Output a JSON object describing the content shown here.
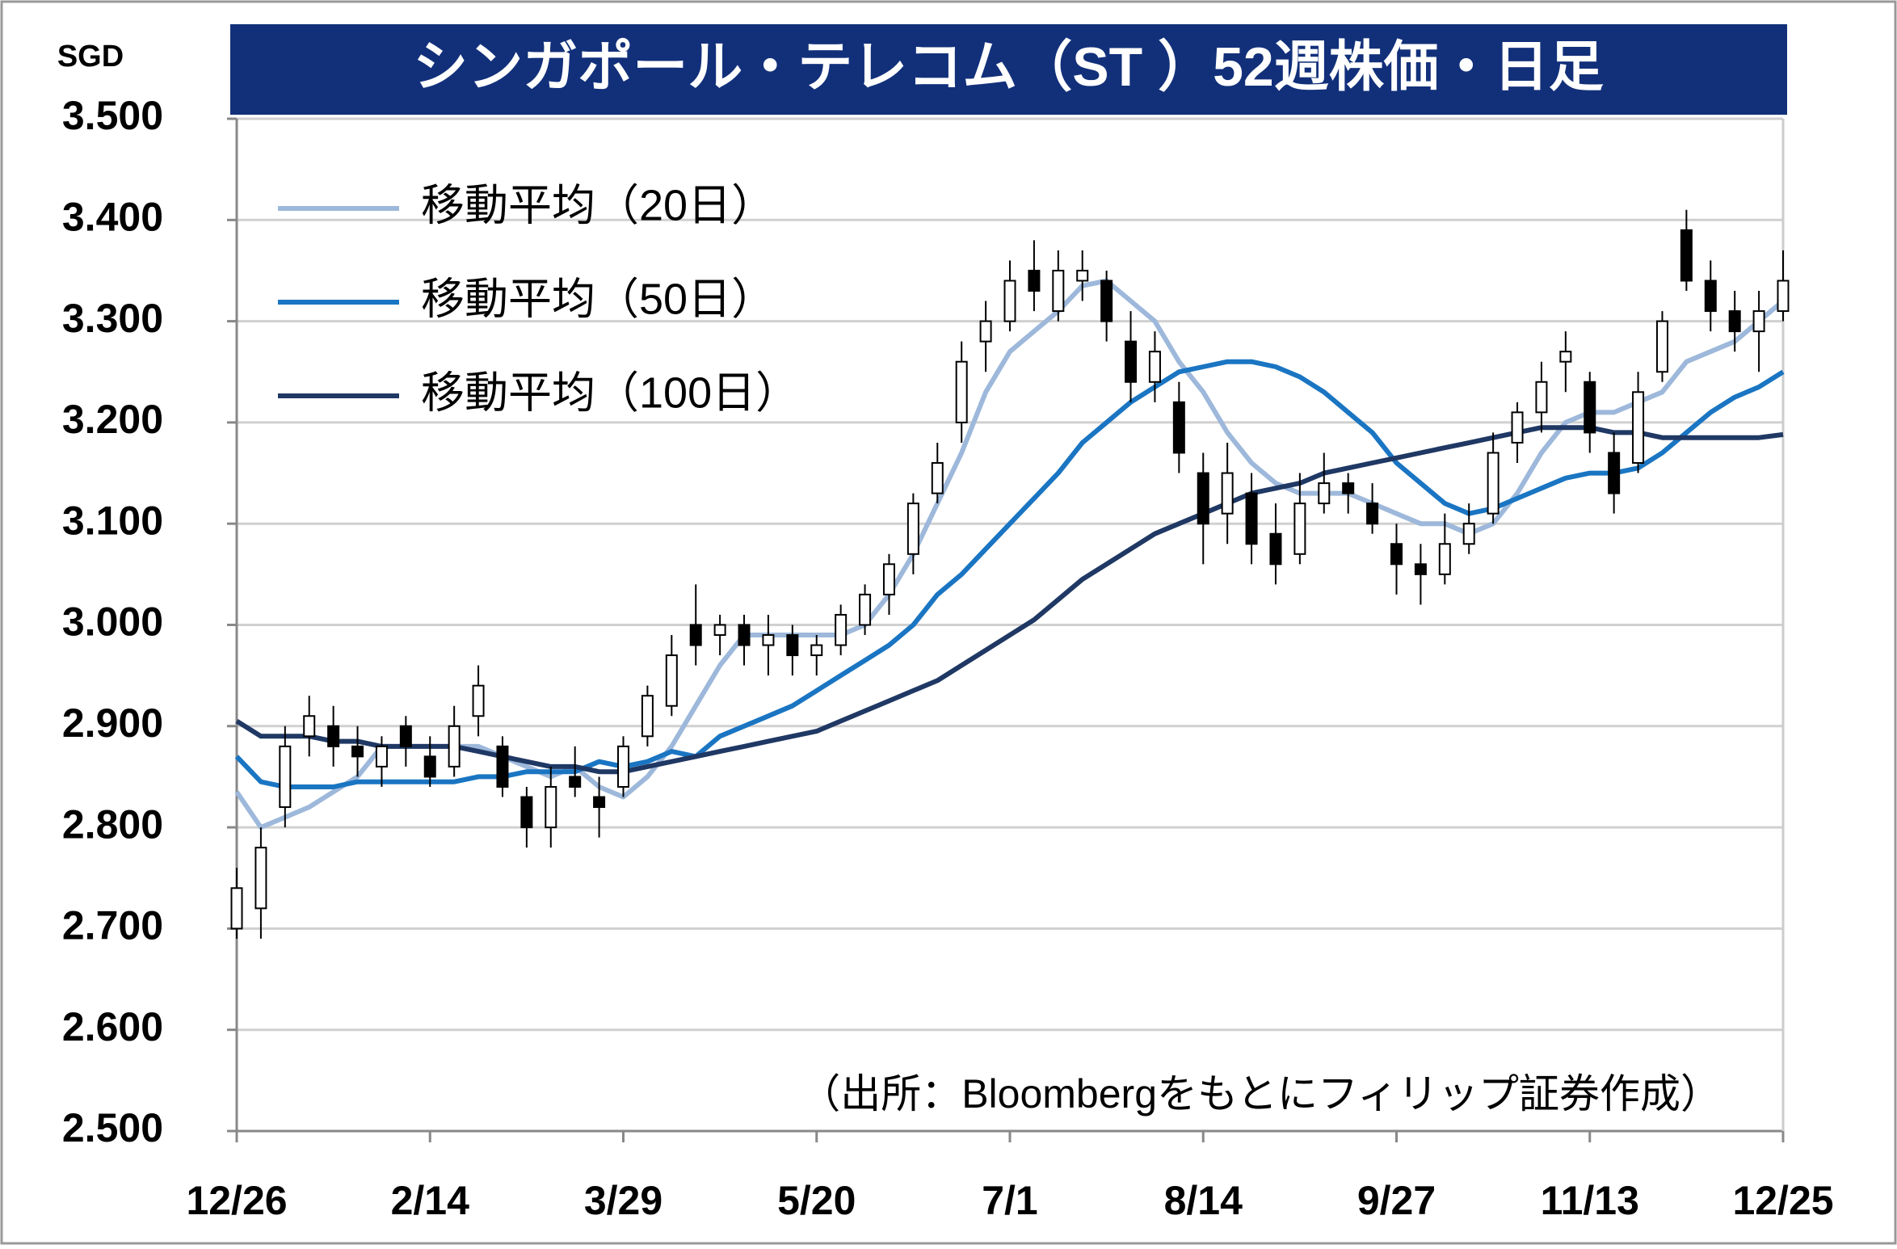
{
  "chart_data": {
    "type": "candlestick",
    "title": "シンガポール・テレコム（ST ）52週株価・日足",
    "y_unit_label": "SGD",
    "source": "（出所：Bloombergをもとにフィリップ証券作成）",
    "categories": [
      "12/26",
      null,
      null,
      null,
      null,
      null,
      null,
      null,
      "2/14",
      null,
      null,
      null,
      null,
      null,
      null,
      null,
      "3/29",
      null,
      null,
      null,
      null,
      null,
      null,
      null,
      "5/20",
      null,
      null,
      null,
      null,
      null,
      null,
      null,
      "7/1",
      null,
      null,
      null,
      null,
      null,
      null,
      null,
      "8/14",
      null,
      null,
      null,
      null,
      null,
      null,
      null,
      "9/27",
      null,
      null,
      null,
      null,
      null,
      null,
      null,
      "11/13",
      null,
      null,
      null,
      null,
      null,
      null,
      null,
      "12/25"
    ],
    "candles": {
      "color": "#000000",
      "open": [
        2.7,
        2.72,
        2.82,
        2.89,
        2.9,
        2.88,
        2.86,
        2.9,
        2.87,
        2.86,
        2.91,
        2.88,
        2.83,
        2.8,
        2.85,
        2.83,
        2.84,
        2.89,
        2.92,
        3.0,
        2.99,
        3.0,
        2.98,
        2.99,
        2.97,
        2.98,
        3.0,
        3.03,
        3.07,
        3.13,
        3.2,
        3.28,
        3.3,
        3.35,
        3.31,
        3.34,
        3.34,
        3.28,
        3.24,
        3.22,
        3.15,
        3.11,
        3.13,
        3.09,
        3.07,
        3.12,
        3.14,
        3.12,
        3.08,
        3.06,
        3.05,
        3.08,
        3.11,
        3.18,
        3.21,
        3.26,
        3.24,
        3.17,
        3.16,
        3.25,
        3.39,
        3.34,
        3.31,
        3.29,
        3.31
      ],
      "high": [
        2.76,
        2.8,
        2.9,
        2.93,
        2.92,
        2.9,
        2.89,
        2.91,
        2.89,
        2.92,
        2.96,
        2.89,
        2.84,
        2.86,
        2.88,
        2.85,
        2.89,
        2.94,
        2.99,
        3.04,
        3.01,
        3.01,
        3.01,
        3.0,
        2.99,
        3.02,
        3.04,
        3.07,
        3.13,
        3.18,
        3.28,
        3.32,
        3.36,
        3.38,
        3.37,
        3.37,
        3.35,
        3.31,
        3.29,
        3.24,
        3.17,
        3.18,
        3.15,
        3.12,
        3.15,
        3.17,
        3.15,
        3.14,
        3.1,
        3.08,
        3.11,
        3.12,
        3.19,
        3.22,
        3.26,
        3.29,
        3.25,
        3.19,
        3.25,
        3.31,
        3.41,
        3.36,
        3.33,
        3.33,
        3.37
      ],
      "low": [
        2.69,
        2.69,
        2.8,
        2.87,
        2.86,
        2.85,
        2.84,
        2.86,
        2.84,
        2.85,
        2.89,
        2.83,
        2.78,
        2.78,
        2.83,
        2.79,
        2.83,
        2.88,
        2.91,
        2.96,
        2.97,
        2.96,
        2.95,
        2.95,
        2.95,
        2.97,
        2.99,
        3.01,
        3.05,
        3.12,
        3.18,
        3.25,
        3.29,
        3.31,
        3.3,
        3.32,
        3.28,
        3.22,
        3.22,
        3.15,
        3.06,
        3.08,
        3.06,
        3.04,
        3.06,
        3.11,
        3.11,
        3.09,
        3.03,
        3.02,
        3.04,
        3.07,
        3.1,
        3.16,
        3.19,
        3.23,
        3.17,
        3.11,
        3.15,
        3.24,
        3.33,
        3.29,
        3.27,
        3.25,
        3.3
      ],
      "close": [
        2.74,
        2.78,
        2.88,
        2.91,
        2.88,
        2.87,
        2.88,
        2.88,
        2.85,
        2.9,
        2.94,
        2.84,
        2.8,
        2.84,
        2.84,
        2.82,
        2.88,
        2.93,
        2.97,
        2.98,
        3.0,
        2.98,
        2.99,
        2.97,
        2.98,
        3.01,
        3.03,
        3.06,
        3.12,
        3.16,
        3.26,
        3.3,
        3.34,
        3.33,
        3.35,
        3.35,
        3.3,
        3.24,
        3.27,
        3.17,
        3.1,
        3.15,
        3.08,
        3.06,
        3.12,
        3.14,
        3.13,
        3.1,
        3.06,
        3.05,
        3.08,
        3.1,
        3.17,
        3.21,
        3.24,
        3.27,
        3.19,
        3.13,
        3.23,
        3.3,
        3.34,
        3.31,
        3.29,
        3.31,
        3.34
      ]
    },
    "series": [
      {
        "name": "移動平均（20日）",
        "color": "#9db8da",
        "values": [
          2.835,
          2.8,
          2.81,
          2.82,
          2.835,
          2.85,
          2.88,
          2.88,
          2.88,
          2.88,
          2.88,
          2.87,
          2.86,
          2.85,
          2.86,
          2.84,
          2.83,
          2.85,
          2.88,
          2.92,
          2.96,
          2.99,
          2.99,
          2.99,
          2.99,
          2.99,
          3.0,
          3.03,
          3.07,
          3.12,
          3.17,
          3.23,
          3.27,
          3.29,
          3.31,
          3.335,
          3.34,
          3.32,
          3.3,
          3.26,
          3.23,
          3.19,
          3.16,
          3.14,
          3.13,
          3.13,
          3.13,
          3.12,
          3.11,
          3.1,
          3.1,
          3.09,
          3.1,
          3.13,
          3.17,
          3.2,
          3.21,
          3.21,
          3.22,
          3.23,
          3.26,
          3.27,
          3.28,
          3.3,
          3.32
        ]
      },
      {
        "name": "移動平均（50日）",
        "color": "#1a75c2",
        "values": [
          2.87,
          2.845,
          2.84,
          2.84,
          2.84,
          2.845,
          2.845,
          2.845,
          2.845,
          2.845,
          2.85,
          2.85,
          2.855,
          2.855,
          2.855,
          2.865,
          2.86,
          2.865,
          2.875,
          2.87,
          2.89,
          2.9,
          2.91,
          2.92,
          2.935,
          2.95,
          2.965,
          2.98,
          3.0,
          3.03,
          3.05,
          3.075,
          3.1,
          3.125,
          3.15,
          3.18,
          3.2,
          3.22,
          3.235,
          3.25,
          3.255,
          3.26,
          3.26,
          3.255,
          3.245,
          3.23,
          3.21,
          3.19,
          3.16,
          3.14,
          3.12,
          3.11,
          3.115,
          3.125,
          3.135,
          3.145,
          3.15,
          3.15,
          3.155,
          3.17,
          3.19,
          3.21,
          3.225,
          3.235,
          3.25
        ]
      },
      {
        "name": "移動平均（100日）",
        "color": "#1f3864",
        "values": [
          2.905,
          2.89,
          2.89,
          2.89,
          2.885,
          2.885,
          2.88,
          2.88,
          2.88,
          2.88,
          2.875,
          2.87,
          2.865,
          2.86,
          2.86,
          2.855,
          2.855,
          2.86,
          2.865,
          2.87,
          2.875,
          2.88,
          2.885,
          2.89,
          2.895,
          2.905,
          2.915,
          2.925,
          2.935,
          2.945,
          2.96,
          2.975,
          2.99,
          3.005,
          3.025,
          3.045,
          3.06,
          3.075,
          3.09,
          3.1,
          3.11,
          3.12,
          3.13,
          3.135,
          3.14,
          3.15,
          3.155,
          3.16,
          3.165,
          3.17,
          3.175,
          3.18,
          3.185,
          3.19,
          3.195,
          3.195,
          3.195,
          3.19,
          3.19,
          3.185,
          3.185,
          3.185,
          3.185,
          3.185,
          3.188
        ]
      }
    ],
    "ylim": [
      2.5,
      3.5
    ],
    "yticks": [
      {
        "value": 2.5,
        "label": "2.500"
      },
      {
        "value": 2.6,
        "label": "2.600"
      },
      {
        "value": 2.7,
        "label": "2.700"
      },
      {
        "value": 2.8,
        "label": "2.800"
      },
      {
        "value": 2.9,
        "label": "2.900"
      },
      {
        "value": 3.0,
        "label": "3.000"
      },
      {
        "value": 3.1,
        "label": "3.100"
      },
      {
        "value": 3.2,
        "label": "3.200"
      },
      {
        "value": 3.3,
        "label": "3.300"
      },
      {
        "value": 3.4,
        "label": "3.400"
      },
      {
        "value": 3.5,
        "label": "3.500"
      }
    ],
    "grid": true,
    "legend": "upper-left"
  }
}
